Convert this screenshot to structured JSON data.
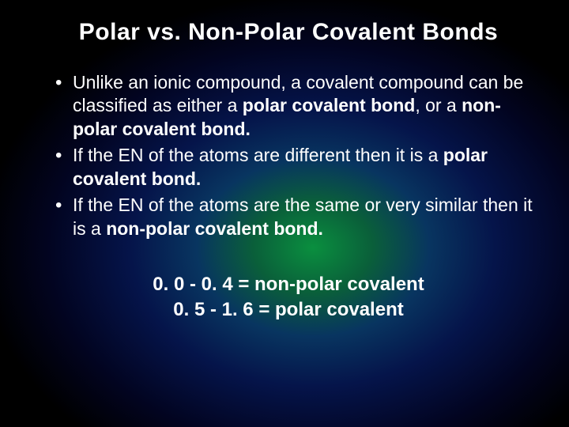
{
  "title": "Polar vs. Non-Polar Covalent Bonds",
  "bullets": {
    "b1a": "Unlike an ionic compound, a covalent compound can be classified as either a ",
    "b1b": "polar covalent bond",
    "b1c": ", or a ",
    "b1d": "non-polar covalent bond.",
    "b2a": "If the EN of the atoms are different then it is a ",
    "b2b": "polar covalent bond.",
    "b3a": "If the EN of the atoms are the same or very similar then it is a ",
    "b3b": "non-polar covalent bond."
  },
  "ranges": {
    "r1": "0. 0 - 0. 4  = non-polar covalent",
    "r2": "0. 5 - 1. 6  = polar covalent"
  },
  "style": {
    "background_gradient_center": "#0a8f3f",
    "background_gradient_mid": "#083560",
    "background_gradient_outer": "#000000",
    "text_color": "#ffffff",
    "title_fontsize": 30,
    "body_fontsize": 23,
    "ranges_fontsize": 24,
    "font_family": "Arial"
  }
}
